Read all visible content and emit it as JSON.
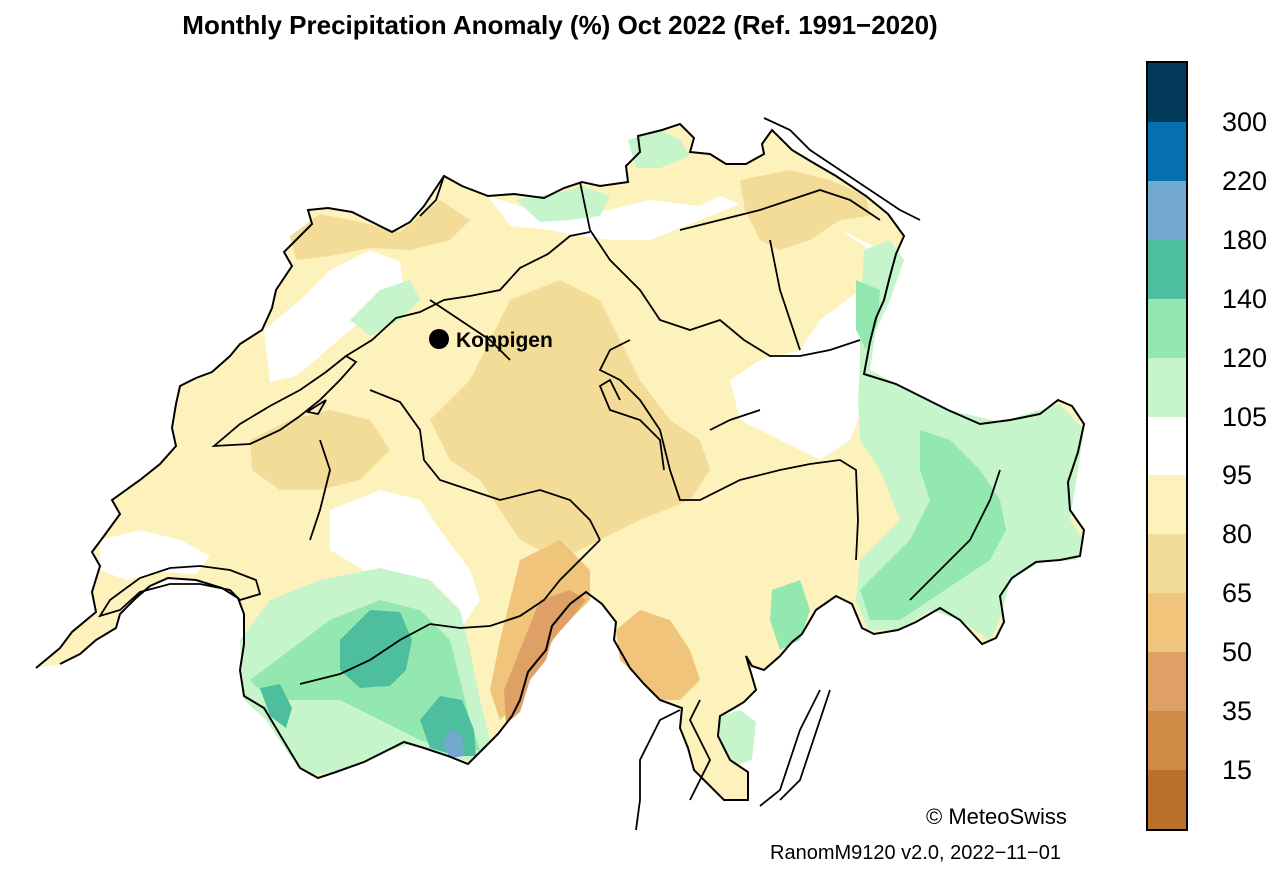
{
  "title": "Monthly Precipitation Anomaly (%) Oct 2022  (Ref. 1991−2020)",
  "station": {
    "name": "Koppigen"
  },
  "copyright": "© MeteoSwiss",
  "version": "RanomM9120 v2.0, 2022−11−01",
  "legend": {
    "unit": "%",
    "labels": [
      "300",
      "220",
      "180",
      "140",
      "120",
      "105",
      "95",
      "80",
      "65",
      "50",
      "35",
      "15"
    ],
    "colors": [
      "#023858",
      "#0570b0",
      "#74a9cf",
      "#4dbf9f",
      "#93e8b0",
      "#c6f5cc",
      "#ffffff",
      "#fdf2bc",
      "#f2dc98",
      "#f0c47a",
      "#dea064",
      "#cf8a45",
      "#b8702a"
    ]
  },
  "colors": {
    "country_fill": "#fdf2bc",
    "dry_fill": "#f2dc98",
    "very_dry_fill": "#dea064",
    "wet_fill": "#93e8b0",
    "slightly_wet_fill": "#c6f5cc",
    "very_wet_fill": "#4dbf9f",
    "wettest_fill": "#74a9cf",
    "neutral_fill": "#ffffff",
    "border": "#000000"
  }
}
